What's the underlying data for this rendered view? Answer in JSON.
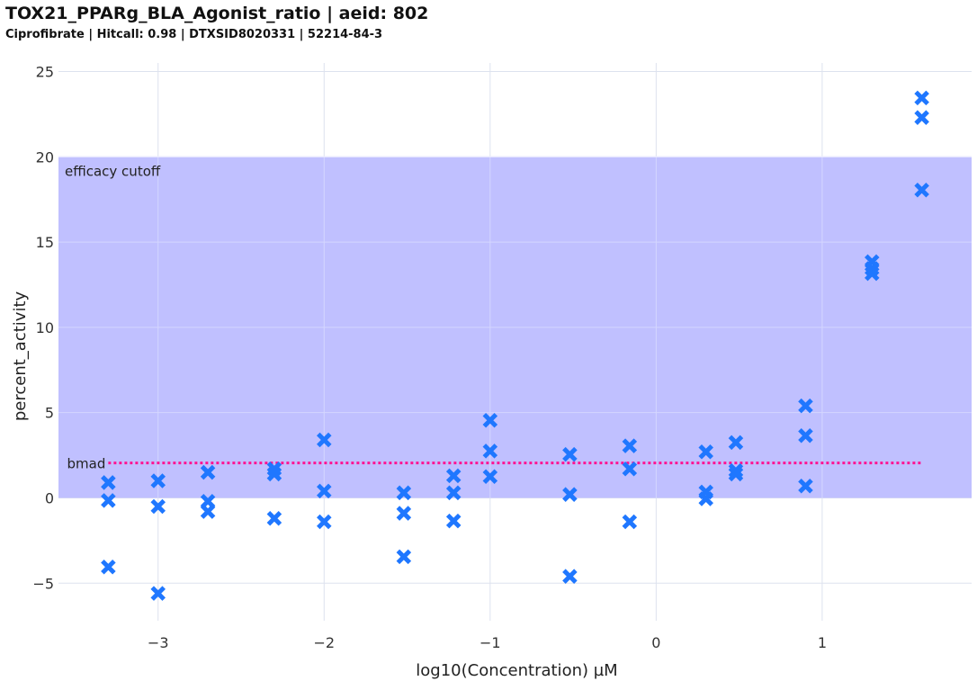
{
  "header": {
    "title": "TOX21_PPARg_BLA_Agonist_ratio | aeid: 802",
    "subtitle": "Ciprofibrate | Hitcall: 0.98 | DTXSID8020331 | 52214-84-3"
  },
  "chart_data": {
    "type": "scatter",
    "xlabel": "log10(Concentration) µM",
    "ylabel": "percent_activity",
    "xlim": [
      -3.6,
      1.9
    ],
    "ylim": [
      -7.2,
      25.5
    ],
    "xticks": [
      -3,
      -2,
      -1,
      0,
      1
    ],
    "yticks": [
      -5,
      0,
      5,
      10,
      15,
      20,
      25
    ],
    "xtick_labels": [
      "−3",
      "−2",
      "−1",
      "0",
      "1"
    ],
    "ytick_labels": [
      "−5",
      "0",
      "5",
      "10",
      "15",
      "20",
      "25"
    ],
    "grid": true,
    "marker": "x",
    "marker_color": "#1f77ff",
    "efficacy_cutoff": {
      "label": "efficacy cutoff",
      "y_from": 0,
      "y_to": 20,
      "color": "#c0c0ff"
    },
    "bmad": {
      "label": "bmad",
      "value": 2.05,
      "x_from": -3.3,
      "x_to": 1.6,
      "color": "#ff1493"
    },
    "points": [
      {
        "x": -3.3,
        "y": 0.9
      },
      {
        "x": -3.3,
        "y": -0.15
      },
      {
        "x": -3.3,
        "y": -4.05
      },
      {
        "x": -3.0,
        "y": 1.0
      },
      {
        "x": -3.0,
        "y": -0.5
      },
      {
        "x": -3.0,
        "y": -5.6
      },
      {
        "x": -2.7,
        "y": 1.5
      },
      {
        "x": -2.7,
        "y": -0.2
      },
      {
        "x": -2.7,
        "y": -0.8
      },
      {
        "x": -2.3,
        "y": 1.7
      },
      {
        "x": -2.3,
        "y": 1.4
      },
      {
        "x": -2.3,
        "y": -1.2
      },
      {
        "x": -2.0,
        "y": 3.4
      },
      {
        "x": -2.0,
        "y": 0.4
      },
      {
        "x": -2.0,
        "y": -1.4
      },
      {
        "x": -1.52,
        "y": 0.3
      },
      {
        "x": -1.52,
        "y": -0.9
      },
      {
        "x": -1.52,
        "y": -3.45
      },
      {
        "x": -1.22,
        "y": 1.3
      },
      {
        "x": -1.22,
        "y": 0.3
      },
      {
        "x": -1.22,
        "y": -1.35
      },
      {
        "x": -1.0,
        "y": 4.55
      },
      {
        "x": -1.0,
        "y": 2.75
      },
      {
        "x": -1.0,
        "y": 1.25
      },
      {
        "x": -0.52,
        "y": 2.55
      },
      {
        "x": -0.52,
        "y": 0.2
      },
      {
        "x": -0.52,
        "y": -4.6
      },
      {
        "x": -0.16,
        "y": 3.05
      },
      {
        "x": -0.16,
        "y": 1.7
      },
      {
        "x": -0.16,
        "y": -1.4
      },
      {
        "x": 0.3,
        "y": 2.7
      },
      {
        "x": 0.3,
        "y": 0.35
      },
      {
        "x": 0.3,
        "y": -0.05
      },
      {
        "x": 0.48,
        "y": 3.25
      },
      {
        "x": 0.48,
        "y": 1.6
      },
      {
        "x": 0.48,
        "y": 1.4
      },
      {
        "x": 0.9,
        "y": 5.4
      },
      {
        "x": 0.9,
        "y": 3.65
      },
      {
        "x": 0.9,
        "y": 0.7
      },
      {
        "x": 1.3,
        "y": 13.85
      },
      {
        "x": 1.3,
        "y": 13.45
      },
      {
        "x": 1.3,
        "y": 13.15
      },
      {
        "x": 1.6,
        "y": 23.45
      },
      {
        "x": 1.6,
        "y": 22.3
      },
      {
        "x": 1.6,
        "y": 18.05
      }
    ]
  }
}
